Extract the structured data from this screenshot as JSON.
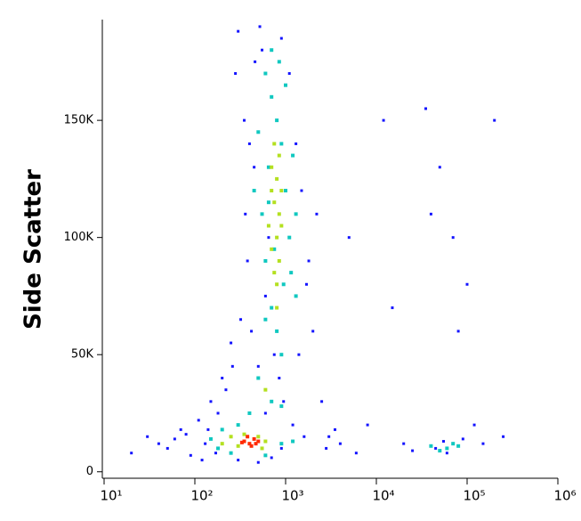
{
  "chart_data": {
    "type": "scatter",
    "y_label": "Side Scatter",
    "x_scale": "log",
    "xlim": [
      10,
      1000000
    ],
    "xticks": [
      {
        "value": 10,
        "label": "10¹"
      },
      {
        "value": 100,
        "label": "10²"
      },
      {
        "value": 1000,
        "label": "10³"
      },
      {
        "value": 10000,
        "label": "10⁴"
      },
      {
        "value": 100000,
        "label": "10⁵"
      },
      {
        "value": 1000000,
        "label": "10⁶"
      }
    ],
    "ylim": [
      -2000,
      193000
    ],
    "yticks": [
      0,
      {
        "value": 50000,
        "label": "50K"
      },
      {
        "value": 100000,
        "label": "100K"
      },
      {
        "value": 150000,
        "label": "150K"
      }
    ],
    "series": [
      {
        "color": "#1414ff",
        "x": [
          30,
          50,
          70,
          90,
          110,
          130,
          150,
          170,
          200,
          250,
          280,
          300,
          350,
          380,
          420,
          450,
          500,
          550,
          600,
          700,
          900,
          1100,
          1300,
          1500,
          1800,
          2000,
          2500,
          3000,
          4000,
          5000,
          6000,
          8000,
          12000,
          15000,
          20000,
          25000,
          35000,
          40000,
          45000,
          50000,
          55000,
          60000,
          70000,
          80000,
          90000,
          100000,
          120000,
          150000,
          200000,
          250000,
          20,
          40,
          60,
          80,
          120,
          140,
          180,
          220,
          260,
          320,
          360,
          400,
          460,
          520,
          650,
          750,
          850,
          950,
          1200,
          1400,
          1700,
          2200,
          2800,
          3500,
          600,
          900,
          1600,
          300,
          500,
          700
        ],
        "values": [
          15000,
          10000,
          18000,
          7000,
          22000,
          12000,
          30000,
          8000,
          40000,
          55000,
          170000,
          188000,
          150000,
          90000,
          60000,
          130000,
          45000,
          180000,
          75000,
          160000,
          185000,
          170000,
          140000,
          120000,
          90000,
          60000,
          30000,
          15000,
          12000,
          100000,
          8000,
          20000,
          150000,
          70000,
          12000,
          9000,
          155000,
          110000,
          10000,
          130000,
          13000,
          8000,
          100000,
          60000,
          14000,
          80000,
          20000,
          12000,
          150000,
          15000,
          8000,
          12000,
          14000,
          16000,
          5000,
          18000,
          25000,
          35000,
          45000,
          65000,
          110000,
          140000,
          175000,
          190000,
          100000,
          50000,
          40000,
          30000,
          20000,
          50000,
          80000,
          110000,
          10000,
          18000,
          25000,
          10000,
          15000,
          5000,
          4000,
          6000
        ]
      },
      {
        "color": "#10c8c0",
        "x": [
          600,
          700,
          800,
          900,
          650,
          1000,
          550,
          1100,
          600,
          950,
          700,
          800,
          500,
          700,
          400,
          900,
          300,
          200,
          150,
          250,
          600,
          900,
          1200,
          180,
          700,
          850,
          500,
          1200,
          1300,
          1150,
          600,
          900,
          750,
          650,
          60000,
          70000,
          50000,
          80000,
          40000,
          1000,
          450,
          1300
        ],
        "values": [
          170000,
          160000,
          150000,
          140000,
          130000,
          120000,
          110000,
          100000,
          90000,
          80000,
          70000,
          60000,
          40000,
          30000,
          25000,
          28000,
          20000,
          18000,
          14000,
          8000,
          7000,
          12000,
          13000,
          10000,
          180000,
          175000,
          145000,
          135000,
          110000,
          85000,
          65000,
          50000,
          95000,
          115000,
          10000,
          12000,
          9000,
          11000,
          11000,
          165000,
          120000,
          75000
        ]
      },
      {
        "color": "#b4e020",
        "x": [
          700,
          800,
          750,
          850,
          800,
          700,
          850,
          750,
          800,
          900,
          650,
          750,
          850,
          200,
          250,
          300,
          500,
          550,
          600,
          350,
          800,
          700,
          900,
          600
        ],
        "values": [
          130000,
          125000,
          115000,
          110000,
          100000,
          95000,
          90000,
          85000,
          80000,
          105000,
          105000,
          140000,
          135000,
          12000,
          15000,
          11000,
          15000,
          10000,
          13000,
          16000,
          70000,
          120000,
          120000,
          35000
        ]
      },
      {
        "color": "#ff2a00",
        "x": [
          350,
          400,
          450,
          380,
          420,
          470,
          330,
          500
        ],
        "values": [
          13000,
          12000,
          14000,
          15000,
          11000,
          12000,
          12500,
          13000
        ]
      }
    ]
  }
}
